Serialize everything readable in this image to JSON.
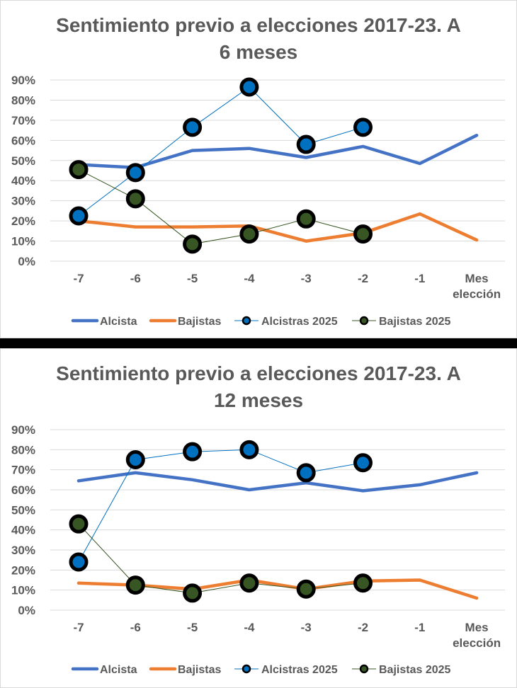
{
  "chart_data": [
    {
      "type": "line",
      "title_line1": "Sentimiento previo a elecciones 2017-23. A",
      "title_line2": "6 meses",
      "categories": [
        "-7",
        "-6",
        "-5",
        "-4",
        "-3",
        "-2",
        "-1",
        "Mes elección"
      ],
      "category_lines": [
        [
          "-7"
        ],
        [
          "-6"
        ],
        [
          "-5"
        ],
        [
          "-4"
        ],
        [
          "-3"
        ],
        [
          "-2"
        ],
        [
          "-1"
        ],
        [
          "Mes",
          "elección"
        ]
      ],
      "y_ticks": [
        "0%",
        "10%",
        "20%",
        "30%",
        "40%",
        "50%",
        "60%",
        "70%",
        "80%",
        "90%"
      ],
      "ylim": [
        0,
        90
      ],
      "series": [
        {
          "name": "Alcista",
          "color": "#4472C4",
          "style": "thick",
          "values": [
            48,
            46.5,
            55,
            56,
            51.5,
            57,
            48.5,
            62.5
          ]
        },
        {
          "name": "Bajistas",
          "color": "#ED7D31",
          "style": "thick",
          "values": [
            20,
            17,
            17,
            17.5,
            10,
            14,
            23.5,
            10.5
          ]
        },
        {
          "name": "Alcistras 2025",
          "color": "#0070C0",
          "style": "marker",
          "values": [
            22.5,
            44,
            66.5,
            86.5,
            58,
            66.5,
            null,
            null
          ]
        },
        {
          "name": "Bajistas 2025",
          "color": "#375623",
          "style": "marker",
          "values": [
            45.5,
            31,
            8.5,
            13.5,
            21,
            13.5,
            null,
            null
          ]
        }
      ]
    },
    {
      "type": "line",
      "title_line1": "Sentimiento previo a elecciones 2017-23. A",
      "title_line2": "12 meses",
      "categories": [
        "-7",
        "-6",
        "-5",
        "-4",
        "-3",
        "-2",
        "-1",
        "Mes elección"
      ],
      "category_lines": [
        [
          "-7"
        ],
        [
          "-6"
        ],
        [
          "-5"
        ],
        [
          "-4"
        ],
        [
          "-3"
        ],
        [
          "-2"
        ],
        [
          "-1"
        ],
        [
          "Mes",
          "elección"
        ]
      ],
      "y_ticks": [
        "0%",
        "10%",
        "20%",
        "30%",
        "40%",
        "50%",
        "60%",
        "70%",
        "80%",
        "90%"
      ],
      "ylim": [
        0,
        90
      ],
      "series": [
        {
          "name": "Alcista",
          "color": "#4472C4",
          "style": "thick",
          "values": [
            64.5,
            68.5,
            65,
            60,
            63.5,
            59.5,
            62.5,
            68.5
          ]
        },
        {
          "name": "Bajistas",
          "color": "#ED7D31",
          "style": "thick",
          "values": [
            13.5,
            12.5,
            10.5,
            15,
            10.5,
            14.5,
            15,
            6
          ]
        },
        {
          "name": "Alcistras 2025",
          "color": "#0070C0",
          "style": "marker",
          "values": [
            24,
            75,
            79,
            80,
            68.5,
            73.5,
            null,
            null
          ]
        },
        {
          "name": "Bajistas 2025",
          "color": "#375623",
          "style": "marker",
          "values": [
            43,
            12.5,
            8.5,
            13.5,
            10.5,
            13.5,
            null,
            null
          ]
        }
      ]
    }
  ]
}
